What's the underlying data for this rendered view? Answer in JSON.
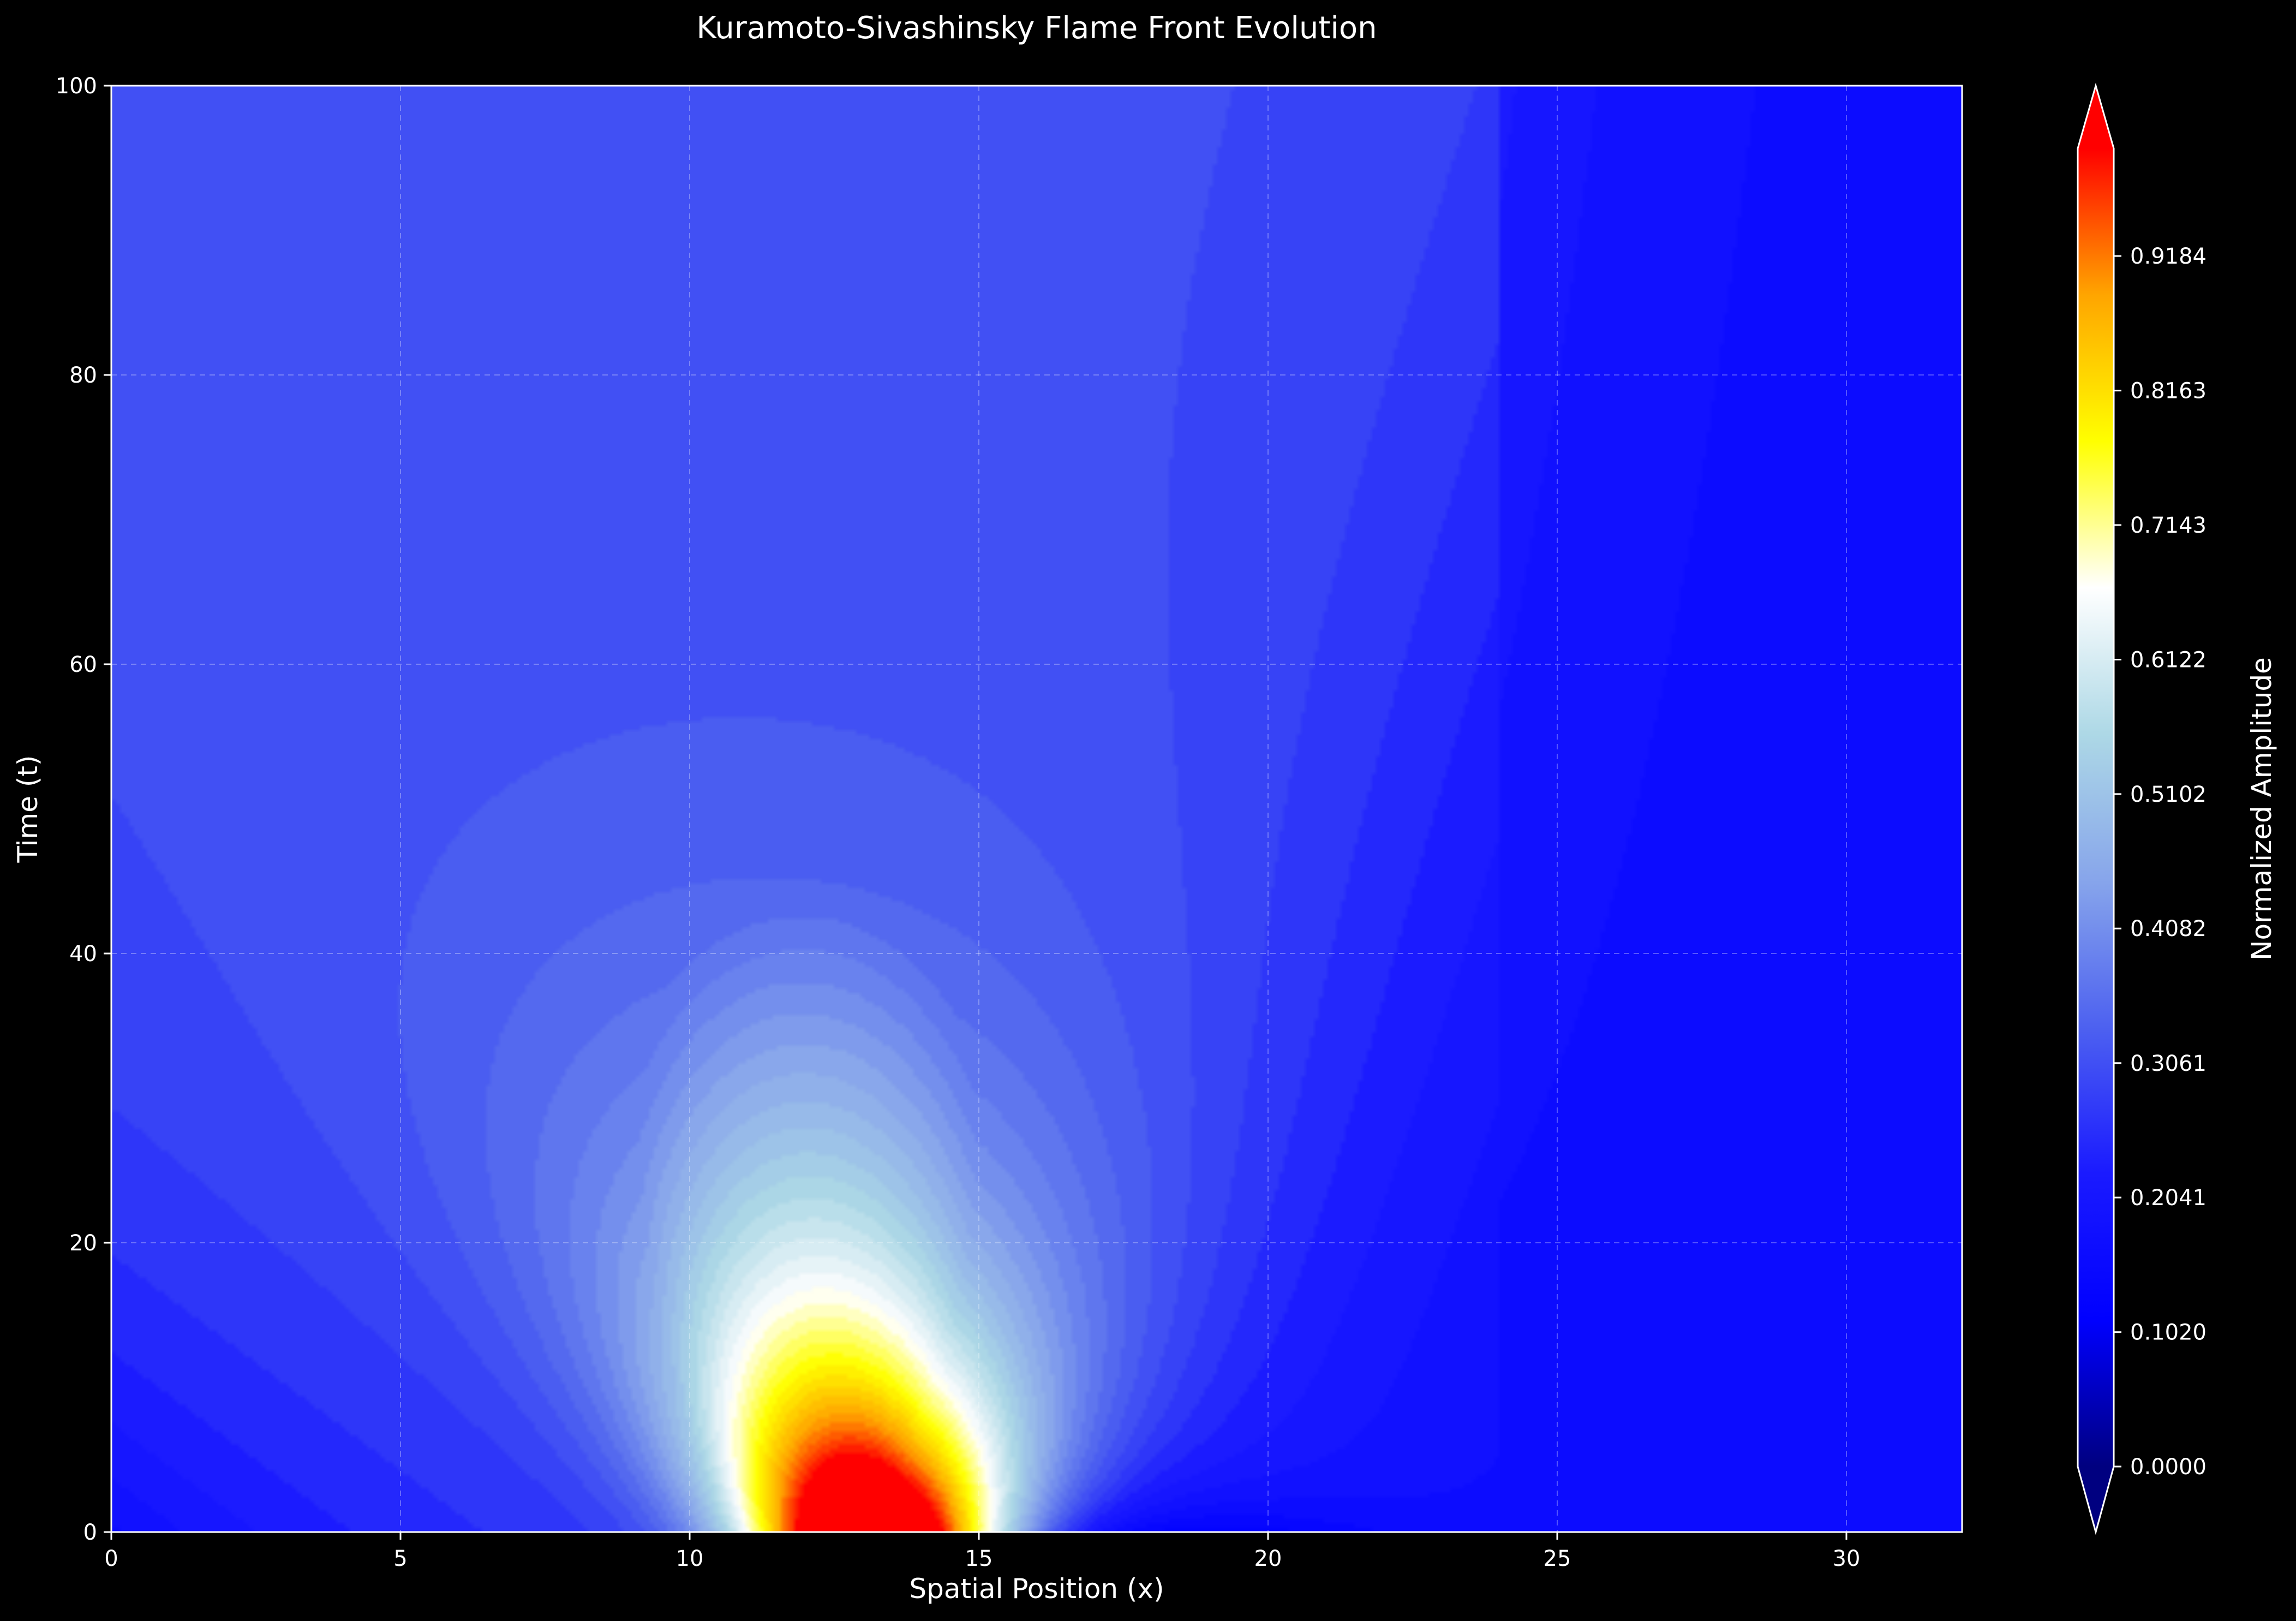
{
  "chart_data": {
    "type": "heatmap",
    "plot_kind": "filled contour",
    "title": "Kuramoto-Sivashinsky Flame Front Evolution",
    "xlabel": "Spatial Position (x)",
    "ylabel": "Time (t)",
    "xlim": [
      0,
      32
    ],
    "ylim": [
      0,
      100
    ],
    "xticks": [
      0,
      5,
      10,
      15,
      20,
      25,
      30
    ],
    "yticks": [
      0,
      20,
      40,
      60,
      80,
      100
    ],
    "grid": true,
    "colorbar": {
      "label": "Normalized Amplitude",
      "range": [
        0,
        1
      ],
      "ticks": [
        "0.0000",
        "0.1020",
        "0.2041",
        "0.3061",
        "0.4082",
        "0.5102",
        "0.6122",
        "0.7143",
        "0.8163",
        "0.9184"
      ],
      "extend": "both",
      "colors": [
        "#000080",
        "#0000ff",
        "#1a1aff",
        "#4d61f0",
        "#87a5eb",
        "#add8e6",
        "#ffffff",
        "#ffff00",
        "#ffa500",
        "#ff0000"
      ]
    },
    "field_model": {
      "description": "approximate amplitude field: peak near x=13, t=0, decaying and spreading with time; faint trough near x=18, t=1",
      "peak_center_x": 13.2,
      "peak_amplitude": 1.0,
      "trough_center_x": 18.0,
      "background_level": 0.25
    }
  }
}
